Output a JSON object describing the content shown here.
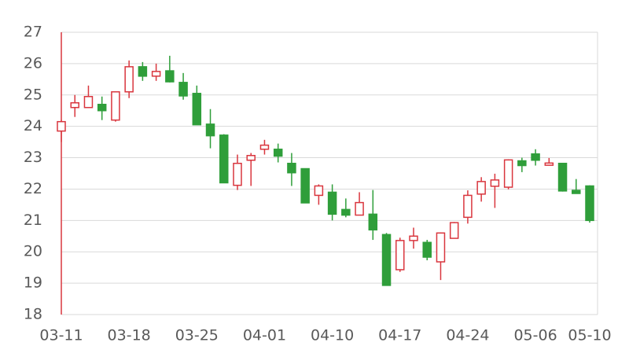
{
  "chart_data": {
    "type": "candlestick",
    "categories": [
      "03-11",
      null,
      null,
      null,
      null,
      "03-18",
      null,
      null,
      null,
      null,
      "03-25",
      null,
      null,
      null,
      null,
      "04-01",
      null,
      null,
      null,
      null,
      "04-10",
      null,
      null,
      null,
      null,
      "04-17",
      null,
      null,
      null,
      null,
      "04-24",
      null,
      null,
      null,
      null,
      "05-06",
      null,
      null,
      null,
      "05-10"
    ],
    "open": [
      23.85,
      24.6,
      24.6,
      24.7,
      24.2,
      25.1,
      25.9,
      25.6,
      25.77,
      25.4,
      25.05,
      24.07,
      23.72,
      22.12,
      22.92,
      23.27,
      23.27,
      22.82,
      22.65,
      21.8,
      21.9,
      21.35,
      21.17,
      21.2,
      20.55,
      19.43,
      20.36,
      20.3,
      19.68,
      20.43,
      21.1,
      21.84,
      22.09,
      22.06,
      22.9,
      23.12,
      22.76,
      22.82,
      21.96,
      22.1
    ],
    "high": [
      24.2,
      25.0,
      25.3,
      24.95,
      25.1,
      26.1,
      26.05,
      26.0,
      26.25,
      25.7,
      25.3,
      24.55,
      23.75,
      23.1,
      23.15,
      23.57,
      23.45,
      23.15,
      22.65,
      22.15,
      22.15,
      21.7,
      21.9,
      21.97,
      20.6,
      20.45,
      20.77,
      20.38,
      20.62,
      20.95,
      21.96,
      22.38,
      22.49,
      22.95,
      23.0,
      23.27,
      22.99,
      22.82,
      22.32,
      22.12
    ],
    "low": [
      23.5,
      24.3,
      24.6,
      24.2,
      24.15,
      24.9,
      25.45,
      25.45,
      25.4,
      24.85,
      24.05,
      23.3,
      22.2,
      21.97,
      22.1,
      23.1,
      22.85,
      22.1,
      21.56,
      21.5,
      21.0,
      21.1,
      21.17,
      20.38,
      18.93,
      19.36,
      20.1,
      19.73,
      19.1,
      20.43,
      20.9,
      21.6,
      21.4,
      21.99,
      22.54,
      22.75,
      22.75,
      21.92,
      21.85,
      20.93
    ],
    "close": [
      24.15,
      24.75,
      24.95,
      24.5,
      25.1,
      25.9,
      25.6,
      25.75,
      25.42,
      24.97,
      24.05,
      23.7,
      22.2,
      22.82,
      23.07,
      23.4,
      23.05,
      22.52,
      21.56,
      22.1,
      21.2,
      21.17,
      21.57,
      20.7,
      18.93,
      20.36,
      20.5,
      19.83,
      20.6,
      20.93,
      21.8,
      22.24,
      22.29,
      22.93,
      22.75,
      22.92,
      22.83,
      21.94,
      21.86,
      21.0
    ],
    "up_color": "#d9363e",
    "down_color": "#2f9e3a",
    "ylim": [
      18,
      27
    ],
    "yticks": [
      18,
      19,
      20,
      21,
      22,
      23,
      24,
      25,
      26,
      27
    ],
    "grid": true
  }
}
